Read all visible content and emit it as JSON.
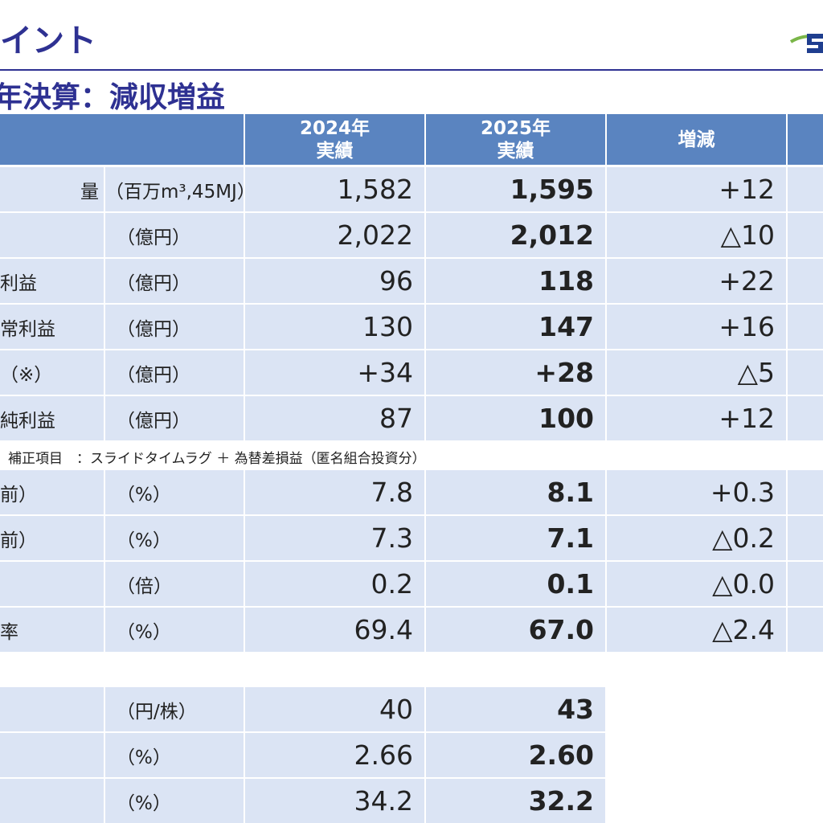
{
  "header": {
    "title": "ポイント",
    "subtitle": "年決算：減収増益"
  },
  "table": {
    "columns": [
      "2024年\n実績",
      "2025年\n実績",
      "増減"
    ],
    "rows": [
      {
        "label": "量",
        "unit": "（百万m³,45MJ）",
        "cells": [
          "1,582",
          "1,595",
          "+12"
        ]
      },
      {
        "unit": "（億円）",
        "cells": [
          "2,022",
          "2,012",
          "△10"
        ]
      },
      {
        "label": "利益",
        "unit": "（億円）",
        "cells": [
          "96",
          "118",
          "+22"
        ]
      },
      {
        "label": "常利益",
        "unit": "（億円）",
        "cells": [
          "130",
          "147",
          "+16"
        ]
      },
      {
        "label": "（※）",
        "unit": "（億円）",
        "cells": [
          "+34",
          "+28",
          "△5"
        ]
      },
      {
        "label": "純利益",
        "unit": "（億円）",
        "cells": [
          "87",
          "100",
          "+12"
        ]
      }
    ],
    "note": "補正項目　：スライドタイムラグ ＋ 為替差損益（匿名組合投資分）",
    "rows2": [
      {
        "label": "前）",
        "unit": "（%）",
        "cells": [
          "7.8",
          "8.1",
          "+0.3"
        ]
      },
      {
        "label": "前）",
        "unit": "（%）",
        "cells": [
          "7.3",
          "7.1",
          "△0.2"
        ]
      },
      {
        "unit": "（倍）",
        "cells": [
          "0.2",
          "0.1",
          "△0.0"
        ]
      },
      {
        "label": "率",
        "unit": "（%）",
        "cells": [
          "69.4",
          "67.0",
          "△2.4"
        ]
      }
    ],
    "rows3": [
      {
        "unit": "（円/株）",
        "cells": [
          "40",
          "43"
        ]
      },
      {
        "unit": "（%）",
        "cells": [
          "2.66",
          "2.60"
        ]
      },
      {
        "unit": "（%）",
        "cells": [
          "34.2",
          "32.2"
        ]
      }
    ]
  }
}
